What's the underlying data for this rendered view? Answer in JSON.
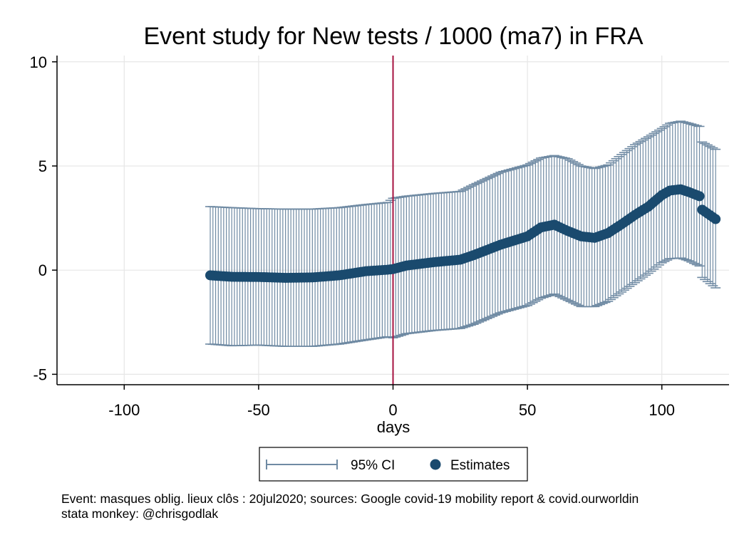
{
  "chart_data": {
    "type": "scatter",
    "title": "Event study for New tests / 1000 (ma7) in FRA",
    "xlabel": "days",
    "ylabel": "",
    "xlim": [
      -125,
      125
    ],
    "ylim": [
      -5.5,
      10.3
    ],
    "xticks": [
      -100,
      -50,
      0,
      50,
      100
    ],
    "yticks": [
      -5,
      0,
      5,
      10
    ],
    "xtick_labels": [
      "-100",
      "-50",
      "0",
      "50",
      "100"
    ],
    "ytick_labels": [
      "-5",
      "0",
      "5",
      "10"
    ],
    "grid": true,
    "event_line_x": 0,
    "colors": {
      "estimates": "#1a4a6e",
      "ci": "#6f8aa3",
      "event_line": "#a6123f",
      "grid": "#e6e6e6"
    },
    "legend": {
      "placement": "bottom",
      "entries": [
        "95% CI",
        "Estimates"
      ]
    },
    "series": [
      {
        "name": "Estimates",
        "type": "scatter",
        "x": [
          -68,
          -60,
          -50,
          -40,
          -30,
          -20,
          -10,
          -2,
          0,
          5,
          15,
          25,
          30,
          40,
          50,
          55,
          60,
          65,
          70,
          75,
          80,
          85,
          90,
          95,
          100,
          103,
          107,
          110,
          114,
          115,
          120
        ],
        "y": [
          -0.25,
          -0.32,
          -0.33,
          -0.37,
          -0.35,
          -0.25,
          -0.05,
          0.02,
          0.05,
          0.22,
          0.38,
          0.5,
          0.72,
          1.22,
          1.62,
          2.05,
          2.18,
          1.88,
          1.62,
          1.55,
          1.78,
          2.2,
          2.65,
          3.05,
          3.6,
          3.82,
          3.88,
          3.75,
          3.55,
          2.9,
          2.45
        ]
      },
      {
        "name": "95% CI",
        "type": "errorbar",
        "x": [
          -68,
          -60,
          -50,
          -40,
          -30,
          -20,
          -10,
          -2,
          0,
          5,
          15,
          25,
          30,
          40,
          50,
          55,
          60,
          65,
          70,
          75,
          80,
          85,
          90,
          95,
          100,
          103,
          107,
          110,
          114,
          115,
          120
        ],
        "upper": [
          3.05,
          3.0,
          2.95,
          2.93,
          2.93,
          3.0,
          3.15,
          3.25,
          3.45,
          3.55,
          3.68,
          3.78,
          4.1,
          4.7,
          5.05,
          5.38,
          5.5,
          5.35,
          5.0,
          4.88,
          5.05,
          5.55,
          6.02,
          6.4,
          6.8,
          7.05,
          7.15,
          7.05,
          6.9,
          6.15,
          5.8
        ],
        "lower": [
          -3.55,
          -3.63,
          -3.6,
          -3.66,
          -3.66,
          -3.55,
          -3.35,
          -3.2,
          -3.25,
          -3.05,
          -2.9,
          -2.8,
          -2.6,
          -2.05,
          -1.7,
          -1.35,
          -1.15,
          -1.45,
          -1.75,
          -1.75,
          -1.5,
          -1.05,
          -0.6,
          -0.15,
          0.35,
          0.55,
          0.58,
          0.45,
          0.2,
          -0.35,
          -0.85
        ]
      }
    ]
  },
  "notes": [
    "Event: masques oblig. lieux clôs : 20jul2020; sources: Google covid-19 mobility report & covid.ourworldin",
    "stata monkey: @chrisgodlak"
  ]
}
